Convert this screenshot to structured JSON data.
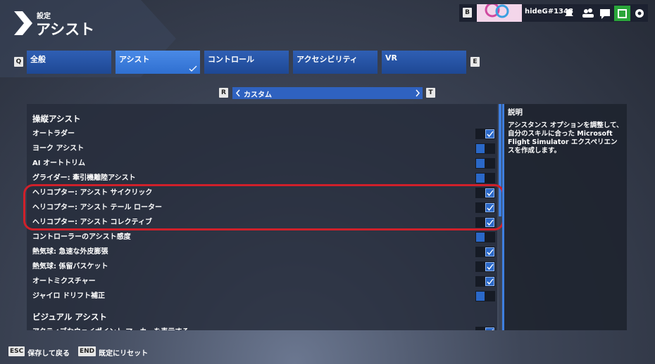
{
  "header": {
    "section": "設定",
    "title": "アシスト"
  },
  "user": {
    "key": "B",
    "name": "hideG#1348"
  },
  "tabs": {
    "prev_key": "Q",
    "next_key": "E",
    "items": [
      {
        "label": "全般",
        "active": false
      },
      {
        "label": "アシスト",
        "active": true
      },
      {
        "label": "コントロール",
        "active": false
      },
      {
        "label": "アクセシビリティ",
        "active": false
      },
      {
        "label": "VR",
        "active": false
      }
    ]
  },
  "preset": {
    "prev_key": "R",
    "label": "カスタム",
    "next_key": "T"
  },
  "sections": [
    {
      "title": "操縦アシスト",
      "items": [
        {
          "label": "オートラダー",
          "checked": true
        },
        {
          "label": "ヨーク アシスト",
          "checked": false
        },
        {
          "label": "AI オートトリム",
          "checked": false
        },
        {
          "label": "グライダー: 牽引機離陸アシスト",
          "checked": false
        },
        {
          "label": "ヘリコプター: アシスト サイクリック",
          "checked": true
        },
        {
          "label": "ヘリコプター: アシスト テール ローター",
          "checked": true
        },
        {
          "label": "ヘリコプター: アシスト コレクティブ",
          "checked": true
        },
        {
          "label": "コントローラーのアシスト感度",
          "checked": false
        },
        {
          "label": "熱気球: 急速な外皮膨張",
          "checked": true
        },
        {
          "label": "熱気球: 係留バスケット",
          "checked": true
        },
        {
          "label": "オートミクスチャー",
          "checked": true
        },
        {
          "label": "ジャイロ ドリフト補正",
          "checked": false
        }
      ]
    },
    {
      "title": "ビジュアル アシスト",
      "items": [
        {
          "label": "アクティブなウェイポイント マーカーを表示する",
          "checked": true
        }
      ]
    }
  ],
  "description": {
    "title": "説明",
    "text": "アシスタンス オプションを調整して、自分のスキルに合った Microsoft Flight Simulator エクスペリエンスを作成します。"
  },
  "footer": [
    {
      "key": "ESC",
      "label": "保存して戻る"
    },
    {
      "key": "END",
      "label": "既定にリセット"
    }
  ]
}
